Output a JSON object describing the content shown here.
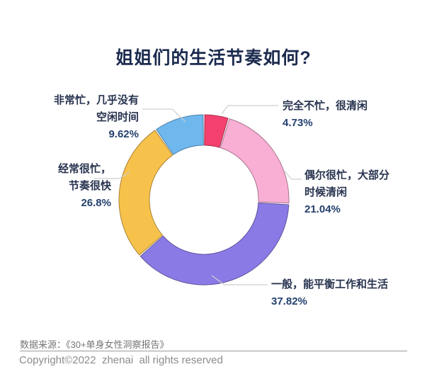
{
  "title": "姐姐们的生活节奏如何?",
  "chart_data": {
    "type": "pie",
    "variant": "donut",
    "title": "姐姐们的生活节奏如何?",
    "legend": "none",
    "donut_hole_ratio": 0.64,
    "start_angle_deg": 0,
    "direction": "clockwise",
    "categories": [
      "完全不忙，很清闲",
      "偶尔很忙，大部分时候清闲",
      "一般，能平衡工作和生活",
      "经常很忙，节奏很快",
      "非常忙，几乎没有空闲时间"
    ],
    "values": [
      4.73,
      21.04,
      37.82,
      26.8,
      9.62
    ],
    "segments": [
      {
        "label": "完全不忙，很清闲",
        "value": 4.73,
        "pct_label": "4.73%",
        "color": "#F4406F"
      },
      {
        "label": "偶尔很忙，大部分时候清闲",
        "value": 21.04,
        "pct_label": "21.04%",
        "color": "#F9AED3"
      },
      {
        "label": "一般，能平衡工作和生活",
        "value": 37.82,
        "pct_label": "37.82%",
        "color": "#8A7AE6"
      },
      {
        "label": "经常很忙，节奏很快",
        "value": 26.8,
        "pct_label": "26.8%",
        "color": "#F7C24C"
      },
      {
        "label": "非常忙，几乎没有空闲时间",
        "value": 9.62,
        "pct_label": "9.62%",
        "color": "#6EB8EE"
      }
    ],
    "callouts": [
      {
        "lines": [
          "完全不忙，很清闲"
        ],
        "pct": "4.73%"
      },
      {
        "lines": [
          "偶尔很忙，大部分",
          "时候清闲"
        ],
        "pct": "21.04%"
      },
      {
        "lines": [
          "一般，能平衡工作和生活"
        ],
        "pct": "37.82%"
      },
      {
        "lines": [
          "经常很忙，",
          "节奏很快"
        ],
        "pct": "26.8%"
      },
      {
        "lines": [
          "非常忙，几乎没有",
          "空闲时间"
        ],
        "pct": "9.62%"
      }
    ]
  },
  "colors": {
    "title_text": "#1b2a4e",
    "label_text": "#27334f",
    "pct_text": "#24406e",
    "leader_line": "#cfcfcf",
    "footer_text": "#8c8c8c",
    "background": "#ffffff"
  },
  "footer": {
    "source": "数据来源：《30+单身女性洞察报告》",
    "copyright": "Copyright©2022  zhenai  all rights reserved"
  }
}
